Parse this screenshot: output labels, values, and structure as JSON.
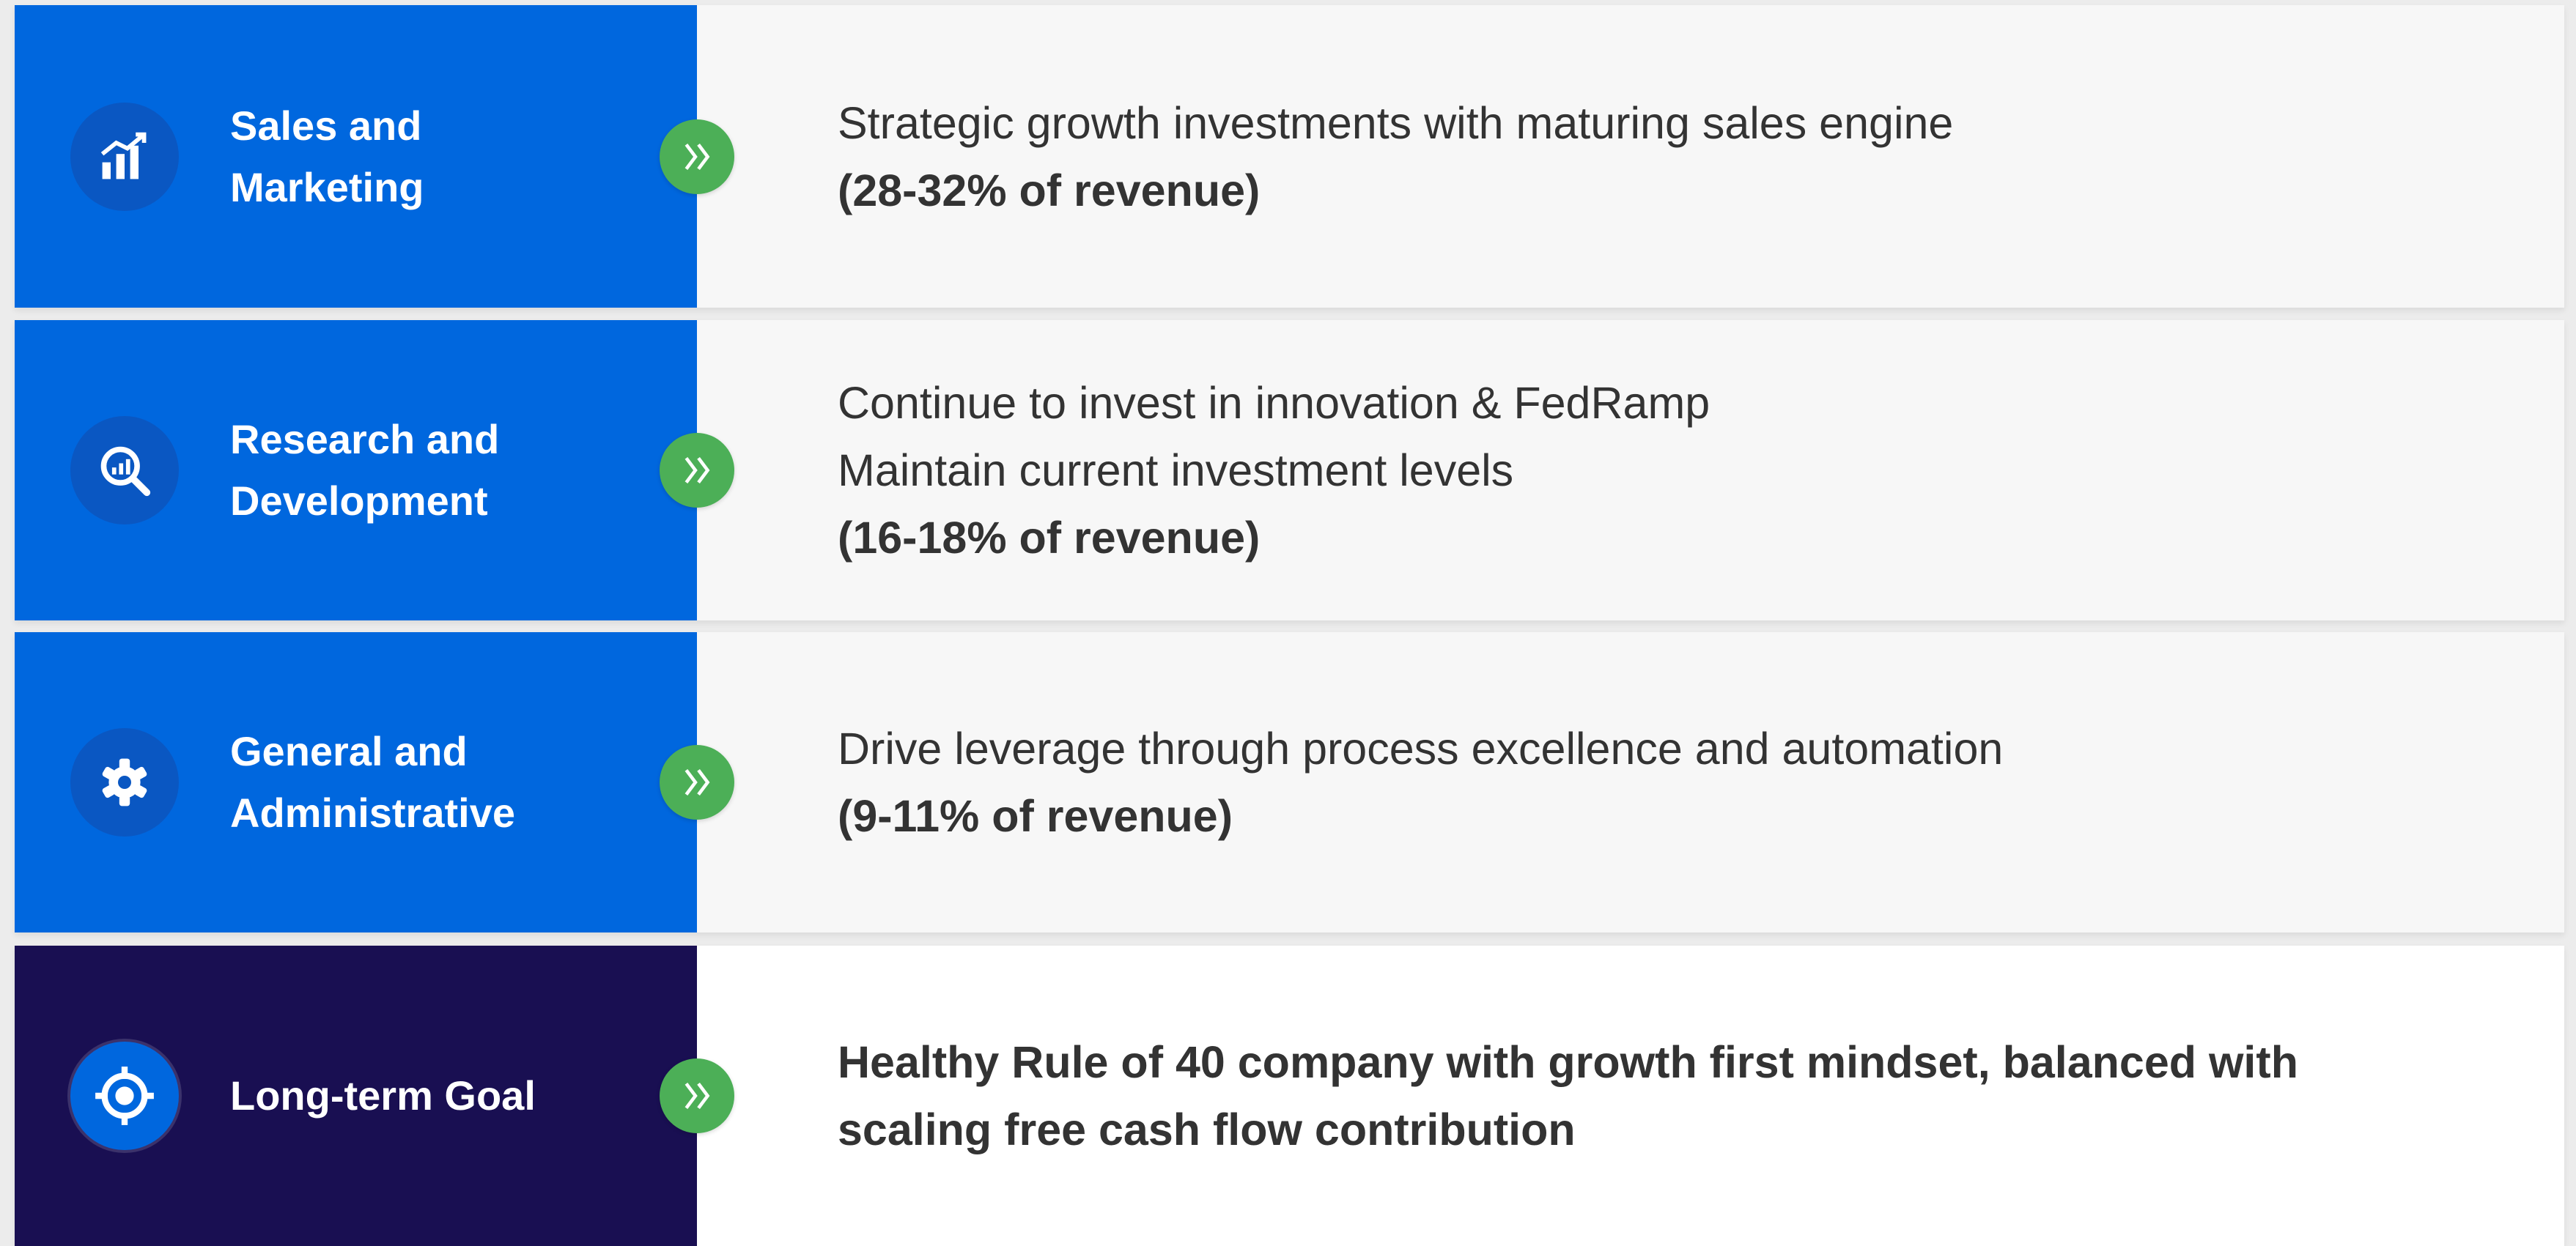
{
  "rows": [
    {
      "label": [
        "Sales and",
        "Marketing"
      ],
      "text": [
        "Strategic growth investments with maturing sales engine"
      ],
      "bold": [
        "(28-32% of revenue)"
      ]
    },
    {
      "label": [
        "Research and",
        "Development"
      ],
      "text": [
        "Continue to invest in innovation & FedRamp",
        "Maintain current investment levels"
      ],
      "bold": [
        "(16-18% of revenue)"
      ]
    },
    {
      "label": [
        "General and",
        "Administrative"
      ],
      "text": [
        "Drive leverage through process excellence and automation"
      ],
      "bold": [
        "(9-11% of revenue)"
      ]
    },
    {
      "label": [
        "Long-term Goal"
      ],
      "text": [],
      "bold": [
        "Healthy Rule of 40 company with growth first mindset, balanced with",
        "scaling free cash flow contribution"
      ]
    }
  ]
}
